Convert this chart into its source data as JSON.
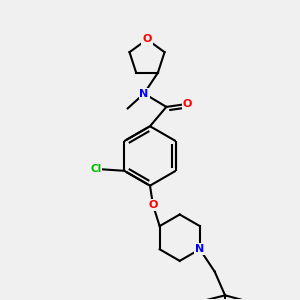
{
  "background_color": "#f0f0f0",
  "bond_color": "#000000",
  "atom_colors": {
    "O": "#ff0000",
    "N": "#0000ff",
    "Cl": "#00bb00",
    "C": "#000000"
  },
  "line_width": 1.5
}
